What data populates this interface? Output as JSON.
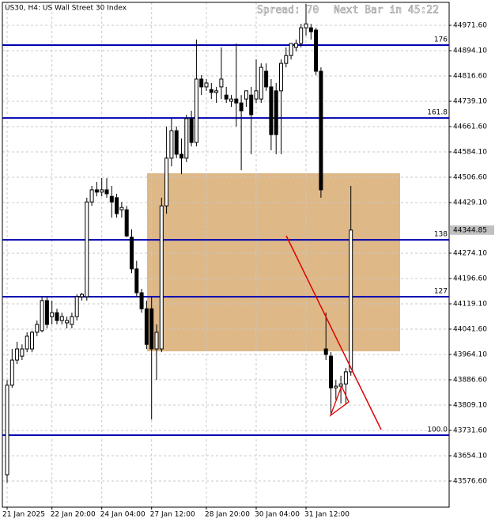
{
  "chart_data": {
    "type": "candlestick",
    "title": "US30, H4:  US Wall Street 30 Index",
    "spread": "Spread: 70",
    "next_bar": "Next Bar in 45:22",
    "current_price": 44344.85,
    "categories": [
      "21 Jan 2025",
      null,
      null,
      null,
      null,
      null,
      null,
      null,
      null,
      "22 Jan 20:00",
      null,
      null,
      null,
      null,
      null,
      null,
      null,
      null,
      null,
      "24 Jan 04:00",
      null,
      null,
      null,
      null,
      null,
      null,
      null,
      null,
      null,
      "27 Jan 12:00",
      null,
      null,
      null,
      null,
      null,
      null,
      null,
      null,
      null,
      null,
      "28 Jan 20:00",
      null,
      null,
      null,
      null,
      null,
      null,
      null,
      null,
      null,
      "30 Jan 04:00",
      null,
      null,
      null,
      null,
      null,
      null,
      null,
      null,
      null,
      "31 Jan 12:00",
      null,
      null,
      null,
      null,
      null,
      null,
      null,
      null,
      null
    ],
    "ohlc": [
      [
        43596,
        43886,
        43572,
        43870
      ],
      [
        43870,
        43981,
        43862,
        43947
      ],
      [
        43947,
        44003,
        43935,
        43981
      ],
      [
        43959,
        43995,
        43947,
        43981
      ],
      [
        43981,
        44032,
        43971,
        44020
      ],
      [
        43981,
        44037,
        43971,
        44032
      ],
      [
        44032,
        44068,
        44020,
        44056
      ],
      [
        44037,
        44141,
        44032,
        44129
      ],
      [
        44129,
        44141,
        44044,
        44056
      ],
      [
        44080,
        44129,
        44056,
        44092
      ],
      [
        44092,
        44104,
        44056,
        44068
      ],
      [
        44068,
        44092,
        44056,
        44080
      ],
      [
        44061,
        44080,
        44044,
        44068
      ],
      [
        44056,
        44092,
        44044,
        44080
      ],
      [
        44080,
        44148,
        44068,
        44141
      ],
      [
        44141,
        44153,
        44129,
        44148
      ],
      [
        44141,
        44444,
        44129,
        44431
      ],
      [
        44431,
        44480,
        44419,
        44468
      ],
      [
        44468,
        44492,
        44448,
        44461
      ],
      [
        44461,
        44504,
        44448,
        44468
      ],
      [
        44468,
        44504,
        44444,
        44456
      ],
      [
        44448,
        44480,
        44383,
        44431
      ],
      [
        44444,
        44456,
        44383,
        44395
      ],
      [
        44407,
        44431,
        44383,
        44414
      ],
      [
        44407,
        44419,
        44323,
        44327
      ],
      [
        44323,
        44347,
        44213,
        44226
      ],
      [
        44226,
        44251,
        44141,
        44153
      ],
      [
        44153,
        44165,
        44092,
        44104
      ],
      [
        44104,
        44129,
        43981,
        43995
      ],
      [
        44104,
        44141,
        43765,
        43981
      ],
      [
        43981,
        44056,
        43886,
        44032
      ],
      [
        43981,
        44444,
        43971,
        44419
      ],
      [
        44419,
        44662,
        44395,
        44565
      ],
      [
        44565,
        44686,
        44540,
        44649
      ],
      [
        44649,
        44662,
        44565,
        44577
      ],
      [
        44577,
        44625,
        44516,
        44565
      ],
      [
        44565,
        44698,
        44553,
        44686
      ],
      [
        44686,
        44710,
        44601,
        44613
      ],
      [
        44613,
        44928,
        44601,
        44807
      ],
      [
        44807,
        44819,
        44758,
        44783
      ],
      [
        44783,
        44807,
        44771,
        44795
      ],
      [
        44775,
        44795,
        44746,
        44766
      ],
      [
        44766,
        44783,
        44734,
        44771
      ],
      [
        44783,
        44904,
        44746,
        44807
      ],
      [
        44758,
        44783,
        44734,
        44746
      ],
      [
        44739,
        44758,
        44722,
        44746
      ],
      [
        44746,
        44916,
        44662,
        44734
      ],
      [
        44734,
        44758,
        44528,
        44710
      ],
      [
        44746,
        44771,
        44722,
        44771
      ],
      [
        44758,
        44783,
        44577,
        44698
      ],
      [
        44746,
        44867,
        44734,
        44771
      ],
      [
        44746,
        44855,
        44734,
        44843
      ],
      [
        44831,
        44855,
        44771,
        44783
      ],
      [
        44783,
        44807,
        44589,
        44637
      ],
      [
        44771,
        44795,
        44577,
        44637
      ],
      [
        44771,
        44867,
        44577,
        44855
      ],
      [
        44855,
        44904,
        44843,
        44879
      ],
      [
        44879,
        44916,
        44867,
        44916
      ],
      [
        44904,
        44928,
        44892,
        44916
      ],
      [
        44916,
        44976,
        44904,
        44964
      ],
      [
        44964,
        45037,
        44940,
        44976
      ],
      [
        44964,
        44976,
        44928,
        44952
      ],
      [
        44957,
        44964,
        44819,
        44831
      ],
      [
        44831,
        44843,
        44444,
        44468
      ],
      [
        43981,
        44092,
        43947,
        43964
      ],
      [
        43959,
        43971,
        43777,
        43862
      ],
      [
        43862,
        43886,
        43826,
        43867
      ],
      [
        43867,
        43899,
        43814,
        43874
      ],
      [
        43874,
        43923,
        43814,
        43911
      ],
      [
        43911,
        44480,
        43899,
        44344.85
      ]
    ],
    "up_color": "#ffffff",
    "down_color": "#000000",
    "levels": [
      {
        "label": "176",
        "price": 44911
      },
      {
        "label": "161.8",
        "price": 44688
      },
      {
        "label": "138",
        "price": 44315
      },
      {
        "label": "127",
        "price": 44141
      },
      {
        "label": "100.0",
        "price": 43717
      }
    ],
    "level_color": "#0000b0",
    "ylim": [
      43496.7,
      45041.8
    ],
    "yticks": [
      {
        "value": 44971.6,
        "label": "44971.60"
      },
      {
        "value": 44894.1,
        "label": "44894.10"
      },
      {
        "value": 44816.6,
        "label": "44816.60"
      },
      {
        "value": 44739.1,
        "label": "44739.10"
      },
      {
        "value": 44661.6,
        "label": "44661.60"
      },
      {
        "value": 44584.1,
        "label": "44584.10"
      },
      {
        "value": 44506.6,
        "label": "44506.60"
      },
      {
        "value": 44429.1,
        "label": "44429.10"
      },
      {
        "value": 44274.1,
        "label": "44274.10"
      },
      {
        "value": 44196.6,
        "label": "44196.60"
      },
      {
        "value": 44119.1,
        "label": "44119.10"
      },
      {
        "value": 44041.6,
        "label": "44041.60"
      },
      {
        "value": 43964.1,
        "label": "43964.10"
      },
      {
        "value": 43886.6,
        "label": "43886.60"
      },
      {
        "value": 43809.1,
        "label": "43809.10"
      },
      {
        "value": 43731.6,
        "label": "43731.60"
      },
      {
        "value": 43654.1,
        "label": "43654.10"
      },
      {
        "value": 43576.6,
        "label": "43576.60"
      }
    ],
    "grid": true
  }
}
